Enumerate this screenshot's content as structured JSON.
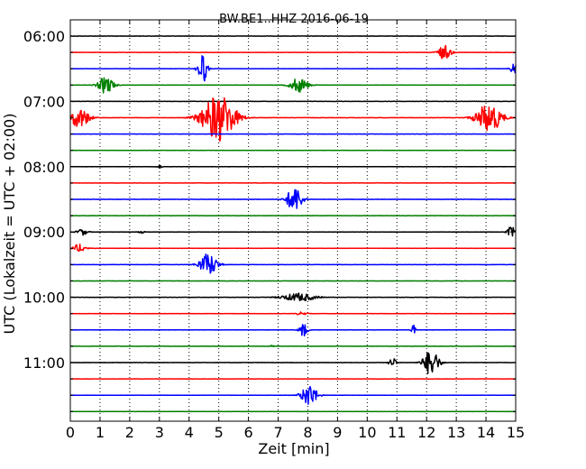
{
  "chart_data": {
    "type": "line",
    "title": "BW.BE1..HHZ 2016-06-19",
    "xlabel": "Zeit  [min]",
    "ylabel": "UTC (Lokalzeit = UTC + 02:00)",
    "xlim": [
      0,
      15
    ],
    "x_ticks": [
      "0",
      "1",
      "2",
      "3",
      "4",
      "5",
      "6",
      "7",
      "8",
      "9",
      "10",
      "11",
      "12",
      "13",
      "14",
      "15"
    ],
    "y_ticks": [
      "06:00",
      "07:00",
      "08:00",
      "09:00",
      "10:00",
      "11:00"
    ],
    "trace_colors": [
      "#000000",
      "#ff0000",
      "#0000ff",
      "#008000"
    ],
    "trace_interval_minutes": 15,
    "grid": "vertical-dotted",
    "traces": [
      {
        "start": "06:00",
        "events": []
      },
      {
        "start": "06:15",
        "events": [
          {
            "t": 12.6,
            "amp": 0.45,
            "dur": 0.5
          }
        ]
      },
      {
        "start": "06:30",
        "events": [
          {
            "t": 4.45,
            "amp": 1.0,
            "dur": 0.35
          },
          {
            "t": 14.95,
            "amp": 0.35,
            "dur": 0.3
          }
        ]
      },
      {
        "start": "06:45",
        "events": [
          {
            "t": 1.2,
            "amp": 0.55,
            "dur": 0.6
          },
          {
            "t": 7.7,
            "amp": 0.45,
            "dur": 0.7
          }
        ]
      },
      {
        "start": "07:00",
        "events": []
      },
      {
        "start": "07:15",
        "events": [
          {
            "t": 0.3,
            "amp": 0.6,
            "dur": 0.8
          },
          {
            "t": 5.0,
            "amp": 1.5,
            "dur": 1.3
          },
          {
            "t": 14.1,
            "amp": 0.9,
            "dur": 1.0
          }
        ]
      },
      {
        "start": "07:30",
        "events": []
      },
      {
        "start": "07:45",
        "events": []
      },
      {
        "start": "08:00",
        "events": [
          {
            "t": 3.0,
            "amp": 0.1,
            "dur": 0.2
          }
        ]
      },
      {
        "start": "08:15",
        "events": []
      },
      {
        "start": "08:30",
        "events": [
          {
            "t": 7.55,
            "amp": 0.8,
            "dur": 0.6
          }
        ]
      },
      {
        "start": "08:45",
        "events": []
      },
      {
        "start": "09:00",
        "events": [
          {
            "t": 0.4,
            "amp": 0.2,
            "dur": 0.4
          },
          {
            "t": 2.4,
            "amp": 0.1,
            "dur": 0.2
          },
          {
            "t": 14.85,
            "amp": 0.35,
            "dur": 0.3
          }
        ]
      },
      {
        "start": "09:15",
        "events": [
          {
            "t": 0.3,
            "amp": 0.25,
            "dur": 0.5
          }
        ]
      },
      {
        "start": "09:30",
        "events": [
          {
            "t": 4.65,
            "amp": 0.7,
            "dur": 0.7
          }
        ]
      },
      {
        "start": "09:45",
        "events": []
      },
      {
        "start": "10:00",
        "events": [
          {
            "t": 7.7,
            "amp": 0.25,
            "dur": 1.3
          }
        ]
      },
      {
        "start": "10:15",
        "events": [
          {
            "t": 7.8,
            "amp": 0.1,
            "dur": 0.4
          }
        ]
      },
      {
        "start": "10:30",
        "events": [
          {
            "t": 7.85,
            "amp": 0.45,
            "dur": 0.3
          },
          {
            "t": 11.55,
            "amp": 0.35,
            "dur": 0.15
          }
        ]
      },
      {
        "start": "10:45",
        "events": [
          {
            "t": 6.8,
            "amp": 0.1,
            "dur": 0.15
          }
        ]
      },
      {
        "start": "11:00",
        "events": [
          {
            "t": 10.85,
            "amp": 0.3,
            "dur": 0.3
          },
          {
            "t": 12.15,
            "amp": 0.85,
            "dur": 0.6
          }
        ]
      },
      {
        "start": "11:15",
        "events": []
      },
      {
        "start": "11:30",
        "events": [
          {
            "t": 8.05,
            "amp": 0.7,
            "dur": 0.6
          }
        ]
      },
      {
        "start": "11:45",
        "events": []
      }
    ]
  }
}
